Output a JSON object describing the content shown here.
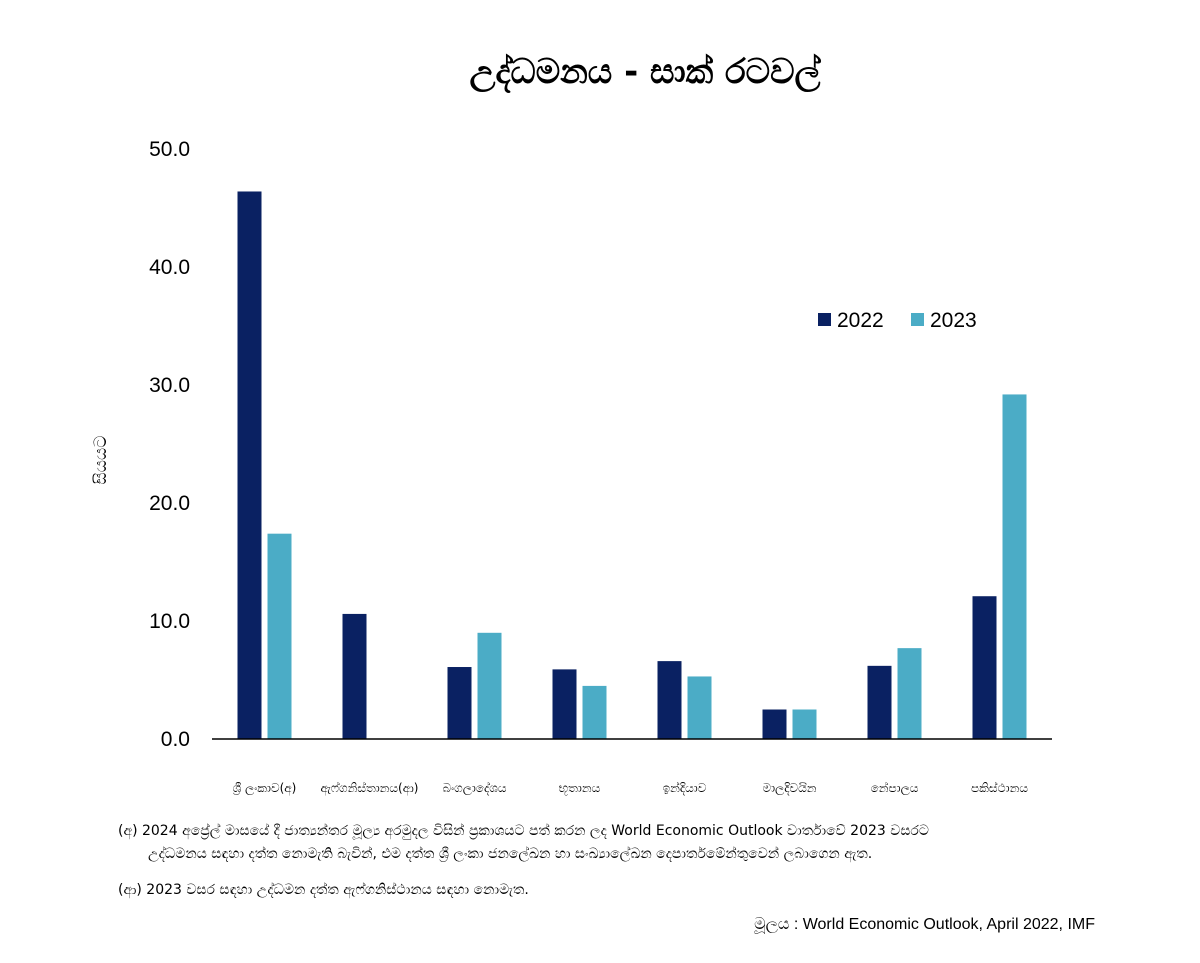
{
  "chart_data": {
    "type": "bar",
    "title": "උද්ධමනය - සාක් රටවල්",
    "ylabel": "සියයට",
    "xlabel": "",
    "ylim": [
      0,
      50
    ],
    "yticks": [
      "0.0",
      "10.0",
      "20.0",
      "30.0",
      "40.0",
      "50.0"
    ],
    "categories": [
      "ශ්‍රී ලංකාව(අ)",
      "ඇෆ්ගනිස්තානය(ආ)",
      "බංගලාදේශය",
      "භූතානය",
      "ඉන්දියාව",
      "මාලදිවයින",
      "නේපාලය",
      "පකිස්ථානය"
    ],
    "series": [
      {
        "name": "2022",
        "color": "#0a2162",
        "values": [
          46.4,
          10.6,
          6.1,
          5.9,
          6.6,
          2.5,
          6.2,
          12.1
        ]
      },
      {
        "name": "2023",
        "color": "#4bacc6",
        "values": [
          17.4,
          null,
          9.0,
          4.5,
          5.3,
          2.5,
          7.7,
          29.2
        ]
      }
    ],
    "legend_position": "top-right",
    "grid": false
  },
  "notes": {
    "a_line1": "(අ) 2024 අප්‍රේල් මාසයේ දී ජාත්‍යන්තර මූල්‍ය අරමුදල විසින් ප්‍රකාශයට පත් කරන ලද World Economic Outlook වාර්තාවේ 2023 වසරට",
    "a_line2": "උද්ධමනය සඳහා දත්ත නොමැති බැවින්, එම දත්ත ශ්‍රී ලංකා ජනලේඛන හා සංඛ්‍යාලේඛන දෙපාර්තමේන්තුවෙන් ලබාගෙන ඇත.",
    "b": "(ආ) 2023 වසර සඳහා උද්ධමන දත්ත ඇෆ්ගනිස්ථානය සඳහා නොමැත."
  },
  "source": "මූලය : World Economic Outlook, April 2022, IMF"
}
